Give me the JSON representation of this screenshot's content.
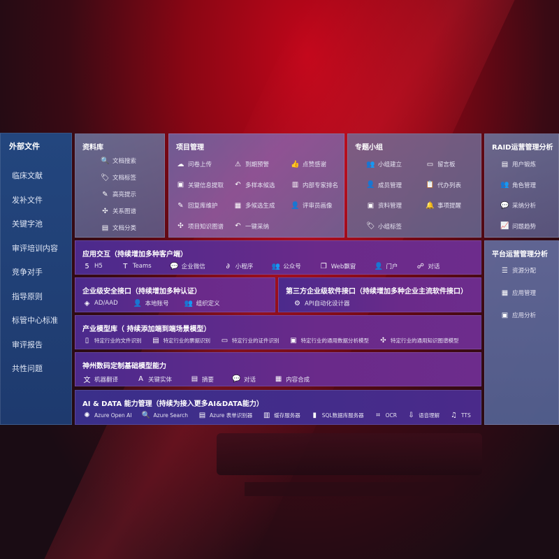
{
  "sidebar": {
    "title": "外部文件",
    "items": [
      "临床文献",
      "发补文件",
      "关键字池",
      "审评培训内容",
      "竞争对手",
      "指导原则",
      "标管中心标准",
      "审评报告",
      "共性问题"
    ]
  },
  "library": {
    "title": "资料库",
    "items": [
      {
        "label": "文档搜索",
        "icon": "document-search-icon",
        "g": "🔍"
      },
      {
        "label": "文档标签",
        "icon": "tag-icon",
        "g": "🏷"
      },
      {
        "label": "高亮提示",
        "icon": "pen-icon",
        "g": "✎"
      },
      {
        "label": "关系图谱",
        "icon": "graph-icon",
        "g": "✣"
      },
      {
        "label": "文档分类",
        "icon": "documents-icon",
        "g": "▤"
      }
    ]
  },
  "project": {
    "title": "项目管理",
    "items": [
      {
        "label": "问卷上传",
        "icon": "cloud-upload-icon",
        "g": "☁"
      },
      {
        "label": "到期预警",
        "icon": "alarm-icon",
        "g": "⚠"
      },
      {
        "label": "点赞感谢",
        "icon": "thumbs-up-icon",
        "g": "👍"
      },
      {
        "label": "关键信息提取",
        "icon": "window-icon",
        "g": "▣"
      },
      {
        "label": "多样本候选",
        "icon": "reply-icon",
        "g": "↶"
      },
      {
        "label": "内部专家排名",
        "icon": "ranking-icon",
        "g": "▥"
      },
      {
        "label": "回复库维护",
        "icon": "edit-icon",
        "g": "✎"
      },
      {
        "label": "多候选生成",
        "icon": "puzzle-icon",
        "g": "▦"
      },
      {
        "label": "评审员画像",
        "icon": "user-icon",
        "g": "👤"
      },
      {
        "label": "项目知识图谱",
        "icon": "graph-icon",
        "g": "✣"
      },
      {
        "label": "一键采纳",
        "icon": "reply-icon",
        "g": "↶"
      }
    ]
  },
  "topic": {
    "title": "专题小组",
    "items": [
      {
        "label": "小组建立",
        "icon": "group-icon",
        "g": "👥"
      },
      {
        "label": "留言板",
        "icon": "bbs-icon",
        "g": "▭"
      },
      {
        "label": "成员管理",
        "icon": "user-add-icon",
        "g": "👤"
      },
      {
        "label": "代办列表",
        "icon": "clipboard-icon",
        "g": "📋"
      },
      {
        "label": "资料管理",
        "icon": "folder-icon",
        "g": "▣"
      },
      {
        "label": "事项提醒",
        "icon": "bell-icon",
        "g": "🔔"
      },
      {
        "label": "小组标签",
        "icon": "tag-icon",
        "g": "🏷"
      }
    ]
  },
  "raid": {
    "title": "RAID运营管理分析",
    "items": [
      {
        "label": "用户锻炼",
        "icon": "id-card-icon",
        "g": "▤"
      },
      {
        "label": "角色管理",
        "icon": "group-icon",
        "g": "👥"
      },
      {
        "label": "采纳分析",
        "icon": "qa-icon",
        "g": "💬"
      },
      {
        "label": "问题趋势",
        "icon": "trend-icon",
        "g": "📈"
      }
    ]
  },
  "platform": {
    "title": "平台运营管理分析",
    "items": [
      {
        "label": "资源分配",
        "icon": "list-icon",
        "g": "☰"
      },
      {
        "label": "应用管理",
        "icon": "apps-icon",
        "g": "▦"
      },
      {
        "label": "应用分析",
        "icon": "analytics-icon",
        "g": "▣"
      }
    ]
  },
  "app": {
    "title": "应用交互（持续增加多种客户端）",
    "items": [
      {
        "label": "H5",
        "icon": "html5-icon",
        "g": "5"
      },
      {
        "label": "Teams",
        "icon": "teams-icon",
        "g": "T"
      },
      {
        "label": "企业微信",
        "icon": "wechat-icon",
        "g": "💬"
      },
      {
        "label": "小程序",
        "icon": "mini-program-icon",
        "g": "∂"
      },
      {
        "label": "公众号",
        "icon": "group-icon",
        "g": "👥"
      },
      {
        "label": "Web飘窗",
        "icon": "window-icon",
        "g": "❐"
      },
      {
        "label": "门户",
        "icon": "portal-icon",
        "g": "👤"
      },
      {
        "label": "对话",
        "icon": "chat-icon",
        "g": "☍"
      }
    ]
  },
  "security": {
    "title": "企业级安全接口（持续增加多种认证）",
    "items": [
      {
        "label": "AD/AAD",
        "icon": "diamond-icon",
        "g": "◈"
      },
      {
        "label": "本地账号",
        "icon": "user-icon",
        "g": "👤"
      },
      {
        "label": "组织定义",
        "icon": "org-icon",
        "g": "👥"
      }
    ]
  },
  "third": {
    "title": "第三方企业级软件接口（持续增加多种企业主流软件接口）",
    "items": [
      {
        "label": "API自动化设计器",
        "icon": "gear-icon",
        "g": "⚙"
      }
    ]
  },
  "industry": {
    "title": "产业模型库（ 持续添加端到端场景模型）",
    "items": [
      {
        "label": "特定行业的文件识别",
        "icon": "file-icon",
        "g": "▯"
      },
      {
        "label": "特定行业的票据识别",
        "icon": "receipt-icon",
        "g": "▤"
      },
      {
        "label": "特定行业的证件识别",
        "icon": "id-card-icon",
        "g": "▭"
      },
      {
        "label": "特定行业的通用数据分析模型",
        "icon": "chart-icon",
        "g": "▣"
      },
      {
        "label": "特定行业的通用知识图谱模型",
        "icon": "graph-icon",
        "g": "✣"
      }
    ]
  },
  "base": {
    "title": "神州数码定制基础模型能力",
    "items": [
      {
        "label": "机器翻译",
        "icon": "translate-icon",
        "g": "文"
      },
      {
        "label": "关键实体",
        "icon": "entity-icon",
        "g": "A"
      },
      {
        "label": "摘要",
        "icon": "summary-icon",
        "g": "▤"
      },
      {
        "label": "对话",
        "icon": "chat-icon",
        "g": "💬"
      },
      {
        "label": "内容合成",
        "icon": "puzzle-icon",
        "g": "▦"
      }
    ]
  },
  "ai": {
    "title": "AI & DATA 能力管理（持续为接入更多AI&DATA能力）",
    "items": [
      {
        "label": "Azure Open AI",
        "icon": "openai-icon",
        "g": "✺"
      },
      {
        "label": "Azure Search",
        "icon": "search-icon",
        "g": "🔍"
      },
      {
        "label": "Azure 表单识别器",
        "icon": "form-icon",
        "g": "▤"
      },
      {
        "label": "缓存服务器",
        "icon": "cache-icon",
        "g": "▥"
      },
      {
        "label": "SQL数据库服务器",
        "icon": "database-icon",
        "g": "▮"
      },
      {
        "label": "OCR",
        "icon": "ocr-icon",
        "g": "⌗"
      },
      {
        "label": "语音理解",
        "icon": "speech-icon",
        "g": "⇩"
      },
      {
        "label": "TTS",
        "icon": "tts-icon",
        "g": "♫"
      }
    ]
  }
}
